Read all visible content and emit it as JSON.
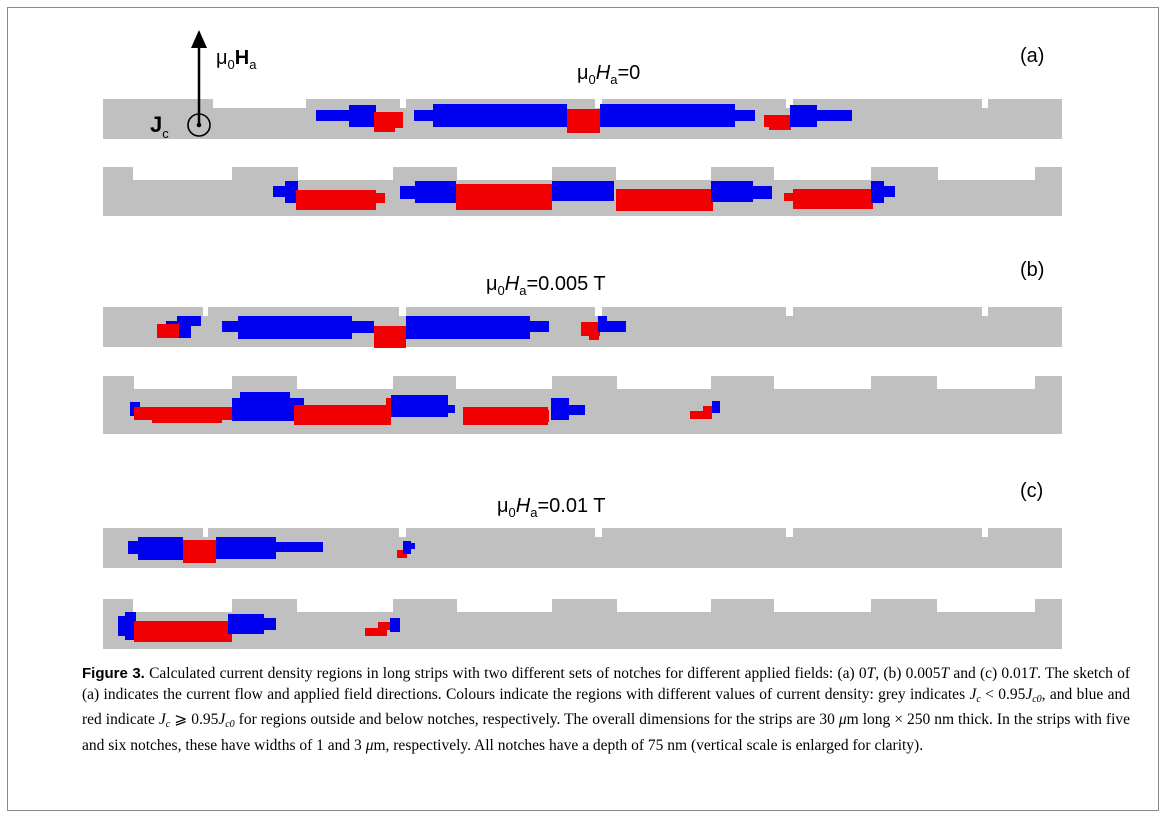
{
  "figure": {
    "colors": {
      "grey_region": "#c0c0c0",
      "blue_region": "#0000f0",
      "red_region": "#f00000"
    },
    "sketch": {
      "field_label": "μ₀Hₐ",
      "current_label": "Jc",
      "current_symbol": "dot-in-circle"
    },
    "panels": [
      {
        "id": "a",
        "panel_label": "(a)",
        "field_text": "μ₀Hₐ=0",
        "field_value": "0"
      },
      {
        "id": "b",
        "panel_label": "(b)",
        "field_text": "μ₀Hₐ=0.005 T",
        "field_value": "0.005 T"
      },
      {
        "id": "c",
        "panel_label": "(c)",
        "field_text": "μ₀Hₐ=0.01 T",
        "field_value": "0.01 T"
      }
    ]
  },
  "caption": {
    "label": "Figure 3.",
    "s1": " Calculated current density regions in long strips with two different sets of notches for different applied fields: (a) 0",
    "s2": ", (b) 0.005",
    "s3": " and (c) 0.01",
    "s4": ". The sketch of (a) indicates the current flow and applied field directions. Colours indicate the regions with different values of current density: grey indicates ",
    "s5": " < 0.95",
    "s6": ", and blue and red indicate ",
    "s7": " ⩾ 0.95",
    "s8": " for regions outside and below notches, respectively. The overall dimensions for the strips are 30 ",
    "s9": "m long × 250 nm thick. In the strips with five and six notches, these have widths of 1 and 3 ",
    "s10": "m, respectively. All notches have a depth of 75 nm (vertical scale is enlarged for clarity).",
    "T": "T",
    "J": "J",
    "c": "c",
    "c0": "c0",
    "mu": "μ"
  }
}
